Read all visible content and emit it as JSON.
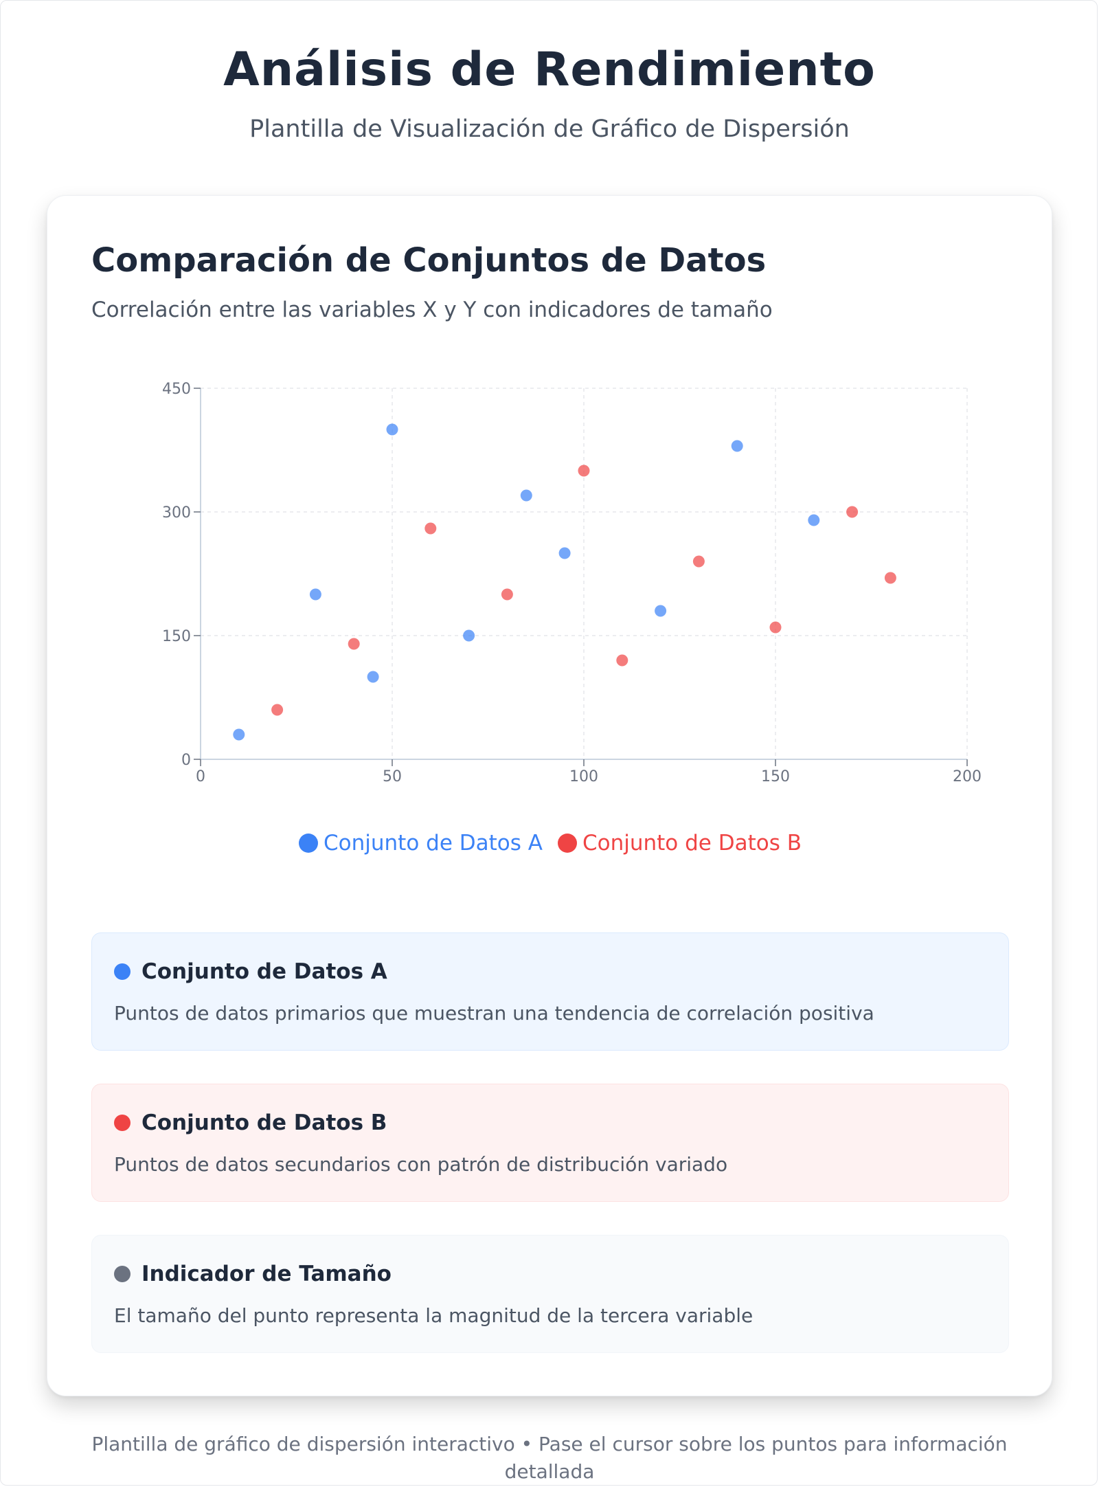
{
  "header": {
    "title": "Análisis de Rendimiento",
    "subtitle": "Plantilla de Visualización de Gráfico de Dispersión"
  },
  "card": {
    "title": "Comparación de Conjuntos de Datos",
    "subtitle": "Correlación entre las variables X y Y con indicadores de tamaño"
  },
  "chart_data": {
    "type": "scatter",
    "title": "",
    "xlabel": "",
    "ylabel": "",
    "xlim": [
      0,
      200
    ],
    "ylim": [
      0,
      450
    ],
    "x_ticks": [
      0,
      50,
      100,
      150,
      200
    ],
    "y_ticks": [
      0,
      150,
      300,
      450
    ],
    "grid": true,
    "legend_position": "bottom-center",
    "series": [
      {
        "name": "Conjunto de Datos A",
        "color": "#3b82f6",
        "points": [
          {
            "x": 10,
            "y": 30
          },
          {
            "x": 30,
            "y": 200
          },
          {
            "x": 45,
            "y": 100
          },
          {
            "x": 50,
            "y": 400
          },
          {
            "x": 70,
            "y": 150
          },
          {
            "x": 85,
            "y": 320
          },
          {
            "x": 95,
            "y": 250
          },
          {
            "x": 120,
            "y": 180
          },
          {
            "x": 140,
            "y": 380
          },
          {
            "x": 160,
            "y": 290
          }
        ]
      },
      {
        "name": "Conjunto de Datos B",
        "color": "#ef4444",
        "points": [
          {
            "x": 20,
            "y": 60
          },
          {
            "x": 40,
            "y": 140
          },
          {
            "x": 60,
            "y": 280
          },
          {
            "x": 80,
            "y": 200
          },
          {
            "x": 100,
            "y": 350
          },
          {
            "x": 110,
            "y": 120
          },
          {
            "x": 130,
            "y": 240
          },
          {
            "x": 150,
            "y": 160
          },
          {
            "x": 170,
            "y": 300
          },
          {
            "x": 180,
            "y": 220
          }
        ]
      }
    ]
  },
  "info_cards": [
    {
      "title": "Conjunto de Datos A",
      "description": "Puntos de datos primarios que muestran una tendencia de correlación positiva",
      "dot_color": "#3b82f6",
      "bg_color": "#eff6ff",
      "border_color": "#dbeafe"
    },
    {
      "title": "Conjunto de Datos B",
      "description": "Puntos de datos secundarios con patrón de distribución variado",
      "dot_color": "#ef4444",
      "bg_color": "#fef2f2",
      "border_color": "#fde2e2"
    },
    {
      "title": "Indicador de Tamaño",
      "description": "El tamaño del punto representa la magnitud de la tercera variable",
      "dot_color": "#6b7280",
      "bg_color": "#f8fafc",
      "border_color": "#f1f5f9"
    }
  ],
  "footer": {
    "text": "Plantilla de gráfico de dispersión interactivo • Pase el cursor sobre los puntos para información detallada"
  }
}
